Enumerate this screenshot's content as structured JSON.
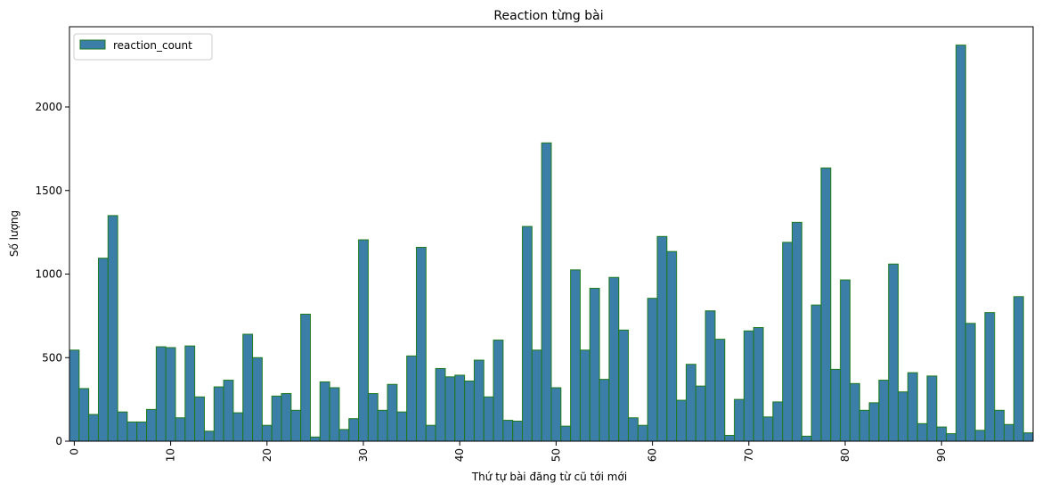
{
  "chart_data": {
    "type": "bar",
    "title": "Reaction từng bài",
    "xlabel": "Thứ tự bài đăng từ cũ tới mới",
    "ylabel": "Số lượng",
    "legend": {
      "entries": [
        "reaction_count"
      ],
      "placement": "top-left"
    },
    "grid": false,
    "ylim": [
      0,
      2480
    ],
    "x_ticks": [
      0,
      10,
      20,
      30,
      40,
      50,
      60,
      70,
      80,
      90
    ],
    "y_ticks": [
      0,
      500,
      1000,
      1500,
      2000
    ],
    "colors": {
      "bar_fill": "#3b7ea8",
      "bar_edge": "#1e7a1e"
    },
    "series": [
      {
        "name": "reaction_count",
        "values": [
          545,
          315,
          160,
          1095,
          1350,
          175,
          115,
          115,
          190,
          565,
          560,
          140,
          570,
          265,
          60,
          325,
          365,
          170,
          640,
          500,
          95,
          270,
          285,
          185,
          760,
          25,
          355,
          320,
          70,
          135,
          1205,
          285,
          185,
          340,
          175,
          510,
          1160,
          95,
          435,
          385,
          395,
          360,
          485,
          265,
          605,
          125,
          120,
          1285,
          545,
          1785,
          320,
          90,
          1025,
          545,
          915,
          370,
          980,
          665,
          140,
          95,
          855,
          1225,
          1135,
          245,
          460,
          330,
          780,
          610,
          35,
          250,
          660,
          680,
          145,
          235,
          1190,
          1310,
          30,
          815,
          1635,
          430,
          965,
          345,
          185,
          230,
          365,
          1060,
          295,
          410,
          105,
          390,
          85,
          45,
          2370,
          705,
          65,
          770,
          185,
          100,
          865,
          50
        ]
      }
    ]
  }
}
